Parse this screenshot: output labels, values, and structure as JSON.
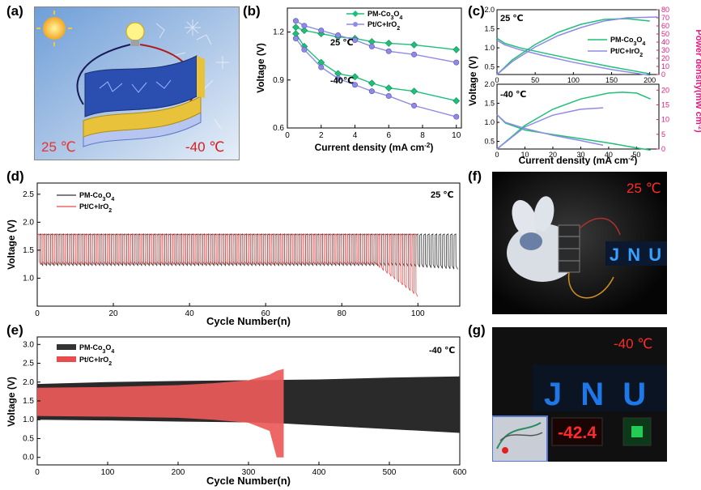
{
  "panels": {
    "a": {
      "label": "(a)",
      "temp_warm": "25 ℃",
      "temp_cold": "-40 ℃",
      "colors": {
        "sky": "#8fb4dd",
        "frost": "#dfe9f5",
        "warm_text": "#e8322a",
        "cold_text": "#d42020",
        "battery_gold": "#e8c23a",
        "battery_blue": "#2a4fb0"
      }
    },
    "b": {
      "label": "(b)",
      "xlabel": "Current density (mA cm",
      "xlabel_sup": "-2",
      "xlabel_end": ")",
      "ylabel": "Voltage (V)",
      "legend": [
        {
          "pre": "PM-Co",
          "sub1": "3",
          "mid": "O",
          "sub2": "4",
          "color": "#1fbf7a",
          "marker": "diamond"
        },
        {
          "pre": "Pt/C+IrO",
          "sub1": "2",
          "mid": "",
          "sub2": "",
          "color": "#8f8ae6",
          "marker": "circle"
        }
      ],
      "annotations": [
        "25 ℃",
        "-40℃"
      ],
      "xticks": [
        "0",
        "2",
        "4",
        "6",
        "8",
        "10"
      ],
      "yticks": [
        "0.6",
        "0.9",
        "1.2"
      ]
    },
    "c": {
      "label": "(c)",
      "xlabel": "Current density (mA cm",
      "xlabel_sup": "-2",
      "xlabel_end": ")",
      "ylabel": "Voltage (V)",
      "ylabel_right": "Power density(mW cm",
      "ylabel_right_sup": "-2",
      "ylabel_right_end": ")",
      "top_temp": "25 ℃",
      "bottom_temp": "-40 ℃",
      "legend": [
        {
          "pre": "PM-Co",
          "sub1": "3",
          "mid": "O",
          "sub2": "4",
          "color": "#1fbf7a"
        },
        {
          "pre": "Pt/C+IrO",
          "sub1": "2",
          "mid": "",
          "sub2": "",
          "color": "#8f8ae6"
        }
      ],
      "top_xticks": [
        "0",
        "50",
        "100",
        "150",
        "200"
      ],
      "top_yticks": [
        "0.5",
        "1.0",
        "1.5",
        "2.0"
      ],
      "top_y2ticks": [
        "0",
        "10",
        "20",
        "30",
        "40",
        "50",
        "60",
        "70",
        "80"
      ],
      "bottom_xticks": [
        "0",
        "10",
        "20",
        "30",
        "40",
        "50"
      ],
      "bottom_yticks": [
        "0.5",
        "1.0",
        "1.5",
        "2.0"
      ],
      "bottom_y2ticks": [
        "0",
        "5",
        "10",
        "15",
        "20"
      ],
      "power_color": "#e0197d"
    },
    "d": {
      "label": "(d)",
      "xlabel": "Cycle Number(n)",
      "ylabel": "Voltage (V)",
      "temp": "25 ℃",
      "legend": [
        {
          "pre": "PM-Co",
          "sub1": "3",
          "mid": "O",
          "sub2": "4",
          "color": "#333333"
        },
        {
          "pre": "Pt/C+IrO",
          "sub1": "2",
          "mid": "",
          "sub2": "",
          "color": "#e84c4c"
        }
      ],
      "xticks": [
        "0",
        "20",
        "40",
        "60",
        "80",
        "100"
      ],
      "yticks": [
        "1.0",
        "1.5",
        "2.0",
        "2.5"
      ]
    },
    "e": {
      "label": "(e)",
      "xlabel": "Cycle Number(n)",
      "ylabel": "Voltage (V)",
      "temp": "-40 ℃",
      "legend": [
        {
          "pre": "PM-Co",
          "sub1": "3",
          "mid": "O",
          "sub2": "4",
          "color": "#333333"
        },
        {
          "pre": "Pt/C+IrO",
          "sub1": "2",
          "mid": "",
          "sub2": "",
          "color": "#e84c4c"
        }
      ],
      "xticks": [
        "0",
        "100",
        "200",
        "300",
        "400",
        "500",
        "600"
      ],
      "yticks": [
        "0.0",
        "0.5",
        "1.0",
        "1.5",
        "2.0",
        "2.5",
        "3.0"
      ]
    },
    "f": {
      "label": "(f)",
      "temp": "25 ℃",
      "sign": "J N U",
      "temp_color": "#ff2a2a",
      "led_color": "#3aa0ff"
    },
    "g": {
      "label": "(g)",
      "temp": "-40 ℃",
      "sign": "J N U",
      "display": "-42.4",
      "temp_color": "#ff2a2a",
      "led_color": "#1e78e8",
      "display_color": "#ff2a2a",
      "switch_color": "#22cc55"
    }
  },
  "chart_data": [
    {
      "panel": "b",
      "type": "line",
      "xlim": [
        0,
        10.3
      ],
      "ylim": [
        0.6,
        1.35
      ],
      "series": [
        {
          "name": "PM-Co3O4",
          "group": "25 ℃",
          "x": [
            0.5,
            1,
            2,
            3,
            4,
            5,
            6,
            7.5,
            10
          ],
          "y": [
            1.23,
            1.21,
            1.19,
            1.17,
            1.16,
            1.14,
            1.13,
            1.12,
            1.09
          ]
        },
        {
          "name": "Pt/C+IrO2",
          "group": "25 ℃",
          "x": [
            0.5,
            1,
            2,
            3,
            4,
            5,
            6,
            7.5,
            10
          ],
          "y": [
            1.27,
            1.24,
            1.21,
            1.18,
            1.15,
            1.11,
            1.08,
            1.06,
            1.01
          ]
        },
        {
          "name": "PM-Co3O4",
          "group": "-40℃",
          "x": [
            0.5,
            1,
            2,
            3,
            4,
            5,
            6,
            7.5,
            10
          ],
          "y": [
            1.19,
            1.11,
            1.01,
            0.94,
            0.92,
            0.88,
            0.85,
            0.83,
            0.77
          ]
        },
        {
          "name": "Pt/C+IrO2",
          "group": "-40℃",
          "x": [
            0.5,
            1,
            2,
            3,
            4,
            5,
            6,
            7.5,
            10
          ],
          "y": [
            1.16,
            1.09,
            0.98,
            0.91,
            0.87,
            0.83,
            0.8,
            0.74,
            0.67
          ]
        }
      ]
    },
    {
      "panel": "c-top",
      "type": "line",
      "xlim": [
        0,
        212
      ],
      "ylim": [
        0.3,
        2.0
      ],
      "y2lim": [
        0,
        80
      ],
      "series": [
        {
          "name": "PM-Co3O4",
          "kind": "voltage",
          "x": [
            0,
            10,
            30,
            60,
            100,
            150,
            200
          ],
          "y": [
            1.25,
            1.12,
            1.0,
            0.87,
            0.7,
            0.5,
            0.32
          ]
        },
        {
          "name": "Pt/C+IrO2",
          "kind": "voltage",
          "x": [
            0,
            10,
            30,
            60,
            100,
            150,
            200
          ],
          "y": [
            1.2,
            1.08,
            0.95,
            0.8,
            0.62,
            0.43,
            0.28
          ]
        },
        {
          "name": "PM-Co3O4",
          "kind": "power",
          "x": [
            0,
            20,
            50,
            80,
            110,
            140,
            170,
            200
          ],
          "y": [
            0,
            18,
            37,
            52,
            62,
            68,
            69,
            66
          ]
        },
        {
          "name": "Pt/C+IrO2",
          "kind": "power",
          "x": [
            0,
            20,
            50,
            80,
            110,
            140,
            170,
            210
          ],
          "y": [
            0,
            16,
            34,
            48,
            58,
            66,
            70,
            71
          ]
        }
      ]
    },
    {
      "panel": "c-bottom",
      "type": "line",
      "xlim": [
        0,
        58
      ],
      "ylim": [
        0.3,
        2.0
      ],
      "y2lim": [
        0,
        22
      ],
      "series": [
        {
          "name": "PM-Co3O4",
          "kind": "voltage",
          "x": [
            0,
            3,
            10,
            20,
            30,
            40,
            50,
            55
          ],
          "y": [
            1.2,
            0.98,
            0.8,
            0.68,
            0.57,
            0.46,
            0.33,
            0.27
          ]
        },
        {
          "name": "Pt/C+IrO2",
          "kind": "voltage",
          "x": [
            0,
            3,
            10,
            20,
            30,
            38
          ],
          "y": [
            1.2,
            1.0,
            0.84,
            0.66,
            0.52,
            0.4
          ]
        },
        {
          "name": "PM-Co3O4",
          "kind": "power",
          "x": [
            0,
            10,
            20,
            30,
            40,
            45,
            50,
            55
          ],
          "y": [
            0,
            8,
            13.5,
            17,
            19,
            19.3,
            19,
            17
          ]
        },
        {
          "name": "Pt/C+IrO2",
          "kind": "power",
          "x": [
            0,
            10,
            20,
            30,
            38
          ],
          "y": [
            0,
            7.5,
            11.5,
            13.5,
            14
          ]
        }
      ]
    },
    {
      "panel": "d",
      "type": "line",
      "xlim": [
        0,
        111
      ],
      "ylim": [
        0.5,
        2.7
      ],
      "series": [
        {
          "name": "PM-Co3O4",
          "cycles": 110,
          "charge_v": 1.79,
          "discharge_v": 1.22,
          "discharge_v_end": 1.09
        },
        {
          "name": "Pt/C+IrO2",
          "cycles": 100,
          "charge_v": 1.79,
          "discharge_v": 1.24,
          "discharge_v_end": 0.62
        }
      ]
    },
    {
      "panel": "e",
      "type": "area",
      "xlim": [
        0,
        600
      ],
      "ylim": [
        -0.2,
        3.2
      ],
      "series": [
        {
          "name": "PM-Co3O4",
          "x": [
            0,
            100,
            200,
            300,
            350,
            400,
            500,
            600
          ],
          "upper": [
            1.95,
            2.0,
            2.03,
            2.05,
            2.06,
            2.07,
            2.12,
            2.15
          ],
          "lower": [
            1.0,
            0.98,
            0.95,
            0.93,
            0.9,
            0.85,
            0.75,
            0.65
          ]
        },
        {
          "name": "Pt/C+IrO2",
          "x": [
            0,
            100,
            200,
            250,
            300,
            330,
            340,
            350
          ],
          "upper": [
            1.85,
            1.87,
            1.92,
            1.97,
            2.05,
            2.2,
            2.3,
            2.35
          ],
          "lower": [
            1.1,
            1.08,
            1.05,
            1.0,
            0.92,
            0.7,
            0.0,
            0.0
          ]
        }
      ]
    }
  ]
}
